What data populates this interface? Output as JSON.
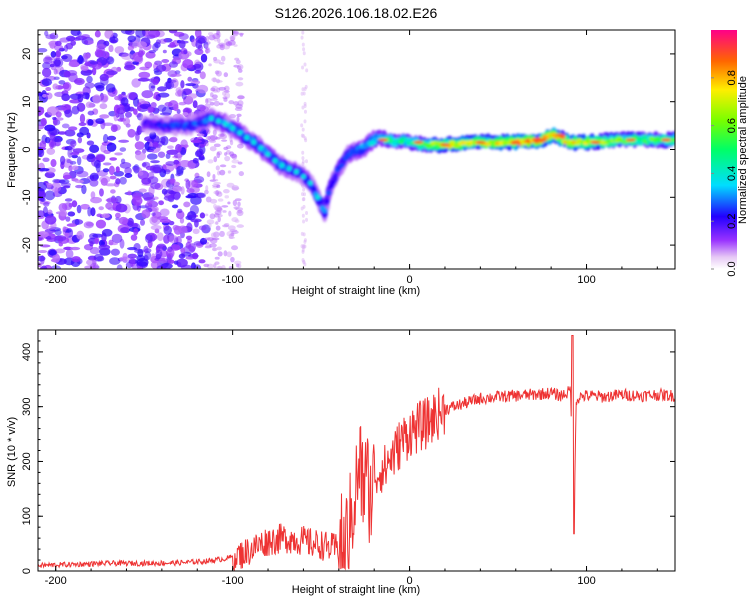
{
  "figure": {
    "title": "S126.2026.106.18.02.E26"
  },
  "chart_data": [
    {
      "type": "heatmap",
      "title": "S126.2026.106.18.02.E26",
      "xlabel": "Height of straight line (km)",
      "ylabel": "Frequency (Hz)",
      "xlim": [
        -210,
        150
      ],
      "ylim": [
        -25,
        25
      ],
      "xticks": [
        -200,
        -100,
        0,
        100
      ],
      "yticks": [
        -20,
        -10,
        0,
        10,
        20
      ],
      "colorbar": {
        "label": "Normalized spectral amplitude",
        "range": [
          0,
          1
        ],
        "ticks": [
          0.0,
          0.2,
          0.4,
          0.6,
          0.8
        ]
      },
      "ridge_frequency_hz": {
        "x": [
          -150,
          -140,
          -125,
          -112,
          -105,
          -98,
          -92,
          -86,
          -80,
          -74,
          -68,
          -62,
          -56,
          -52,
          -48,
          -45,
          -40,
          -35,
          -28,
          -22,
          -18,
          -12,
          -8,
          -4,
          0,
          10,
          20,
          40,
          60,
          75,
          80,
          85,
          90,
          95,
          100,
          120,
          150
        ],
        "y": [
          5.5,
          5,
          5,
          6.5,
          5.5,
          4,
          2.5,
          1,
          -1,
          -3,
          -4,
          -5,
          -7,
          -10,
          -13,
          -8,
          -4,
          -1,
          0,
          1.5,
          2.5,
          2,
          1.5,
          2,
          1.5,
          1,
          1,
          1.5,
          1.5,
          2,
          3,
          2.5,
          1.5,
          1.5,
          1.5,
          2,
          2
        ]
      },
      "ridge_amplitude": {
        "x": [
          -150,
          -112,
          -100,
          -90,
          -80,
          -70,
          -60,
          -50,
          -40,
          -30,
          -20,
          -10,
          0,
          10,
          20,
          40,
          60,
          80,
          100,
          120,
          150
        ],
        "y": [
          0.2,
          0.3,
          0.3,
          0.3,
          0.3,
          0.3,
          0.25,
          0.3,
          0.25,
          0.3,
          0.4,
          0.5,
          0.5,
          0.6,
          0.75,
          0.7,
          0.8,
          0.85,
          0.7,
          0.6,
          0.55
        ]
      }
    },
    {
      "type": "line",
      "xlabel": "Height of straight line (km)",
      "ylabel": "SNR (10 * v/v)",
      "xlim": [
        -210,
        150
      ],
      "ylim": [
        0,
        440
      ],
      "xticks": [
        -200,
        -100,
        0,
        100
      ],
      "yticks": [
        0,
        100,
        200,
        300,
        400
      ],
      "series": [
        {
          "name": "SNR",
          "color": "#ee3333",
          "x": [
            -210,
            -190,
            -170,
            -150,
            -130,
            -115,
            -105,
            -100,
            -95,
            -90,
            -85,
            -80,
            -75,
            -70,
            -65,
            -60,
            -55,
            -50,
            -45,
            -40,
            -35,
            -32,
            -30,
            -28,
            -26,
            -24,
            -22,
            -20,
            -18,
            -16,
            -14,
            -12,
            -10,
            -8,
            -6,
            -4,
            -2,
            0,
            5,
            10,
            15,
            20,
            25,
            30,
            40,
            50,
            60,
            70,
            80,
            85,
            89,
            91,
            92,
            93,
            94,
            96,
            100,
            110,
            120,
            130,
            140,
            150
          ],
          "y": [
            10,
            12,
            14,
            14,
            15,
            18,
            22,
            26,
            30,
            38,
            48,
            55,
            58,
            60,
            58,
            55,
            50,
            48,
            42,
            42,
            60,
            120,
            160,
            190,
            150,
            170,
            130,
            180,
            175,
            190,
            185,
            200,
            210,
            215,
            230,
            240,
            245,
            255,
            262,
            270,
            285,
            295,
            300,
            305,
            315,
            318,
            320,
            322,
            325,
            320,
            325,
            330,
            185,
            68,
            310,
            318,
            320,
            318,
            322,
            320,
            322,
            320
          ]
        }
      ],
      "annotations": [
        {
          "x": -28,
          "y": 345,
          "text": ""
        },
        {
          "x": 92,
          "y": 430,
          "text": ""
        }
      ]
    }
  ]
}
